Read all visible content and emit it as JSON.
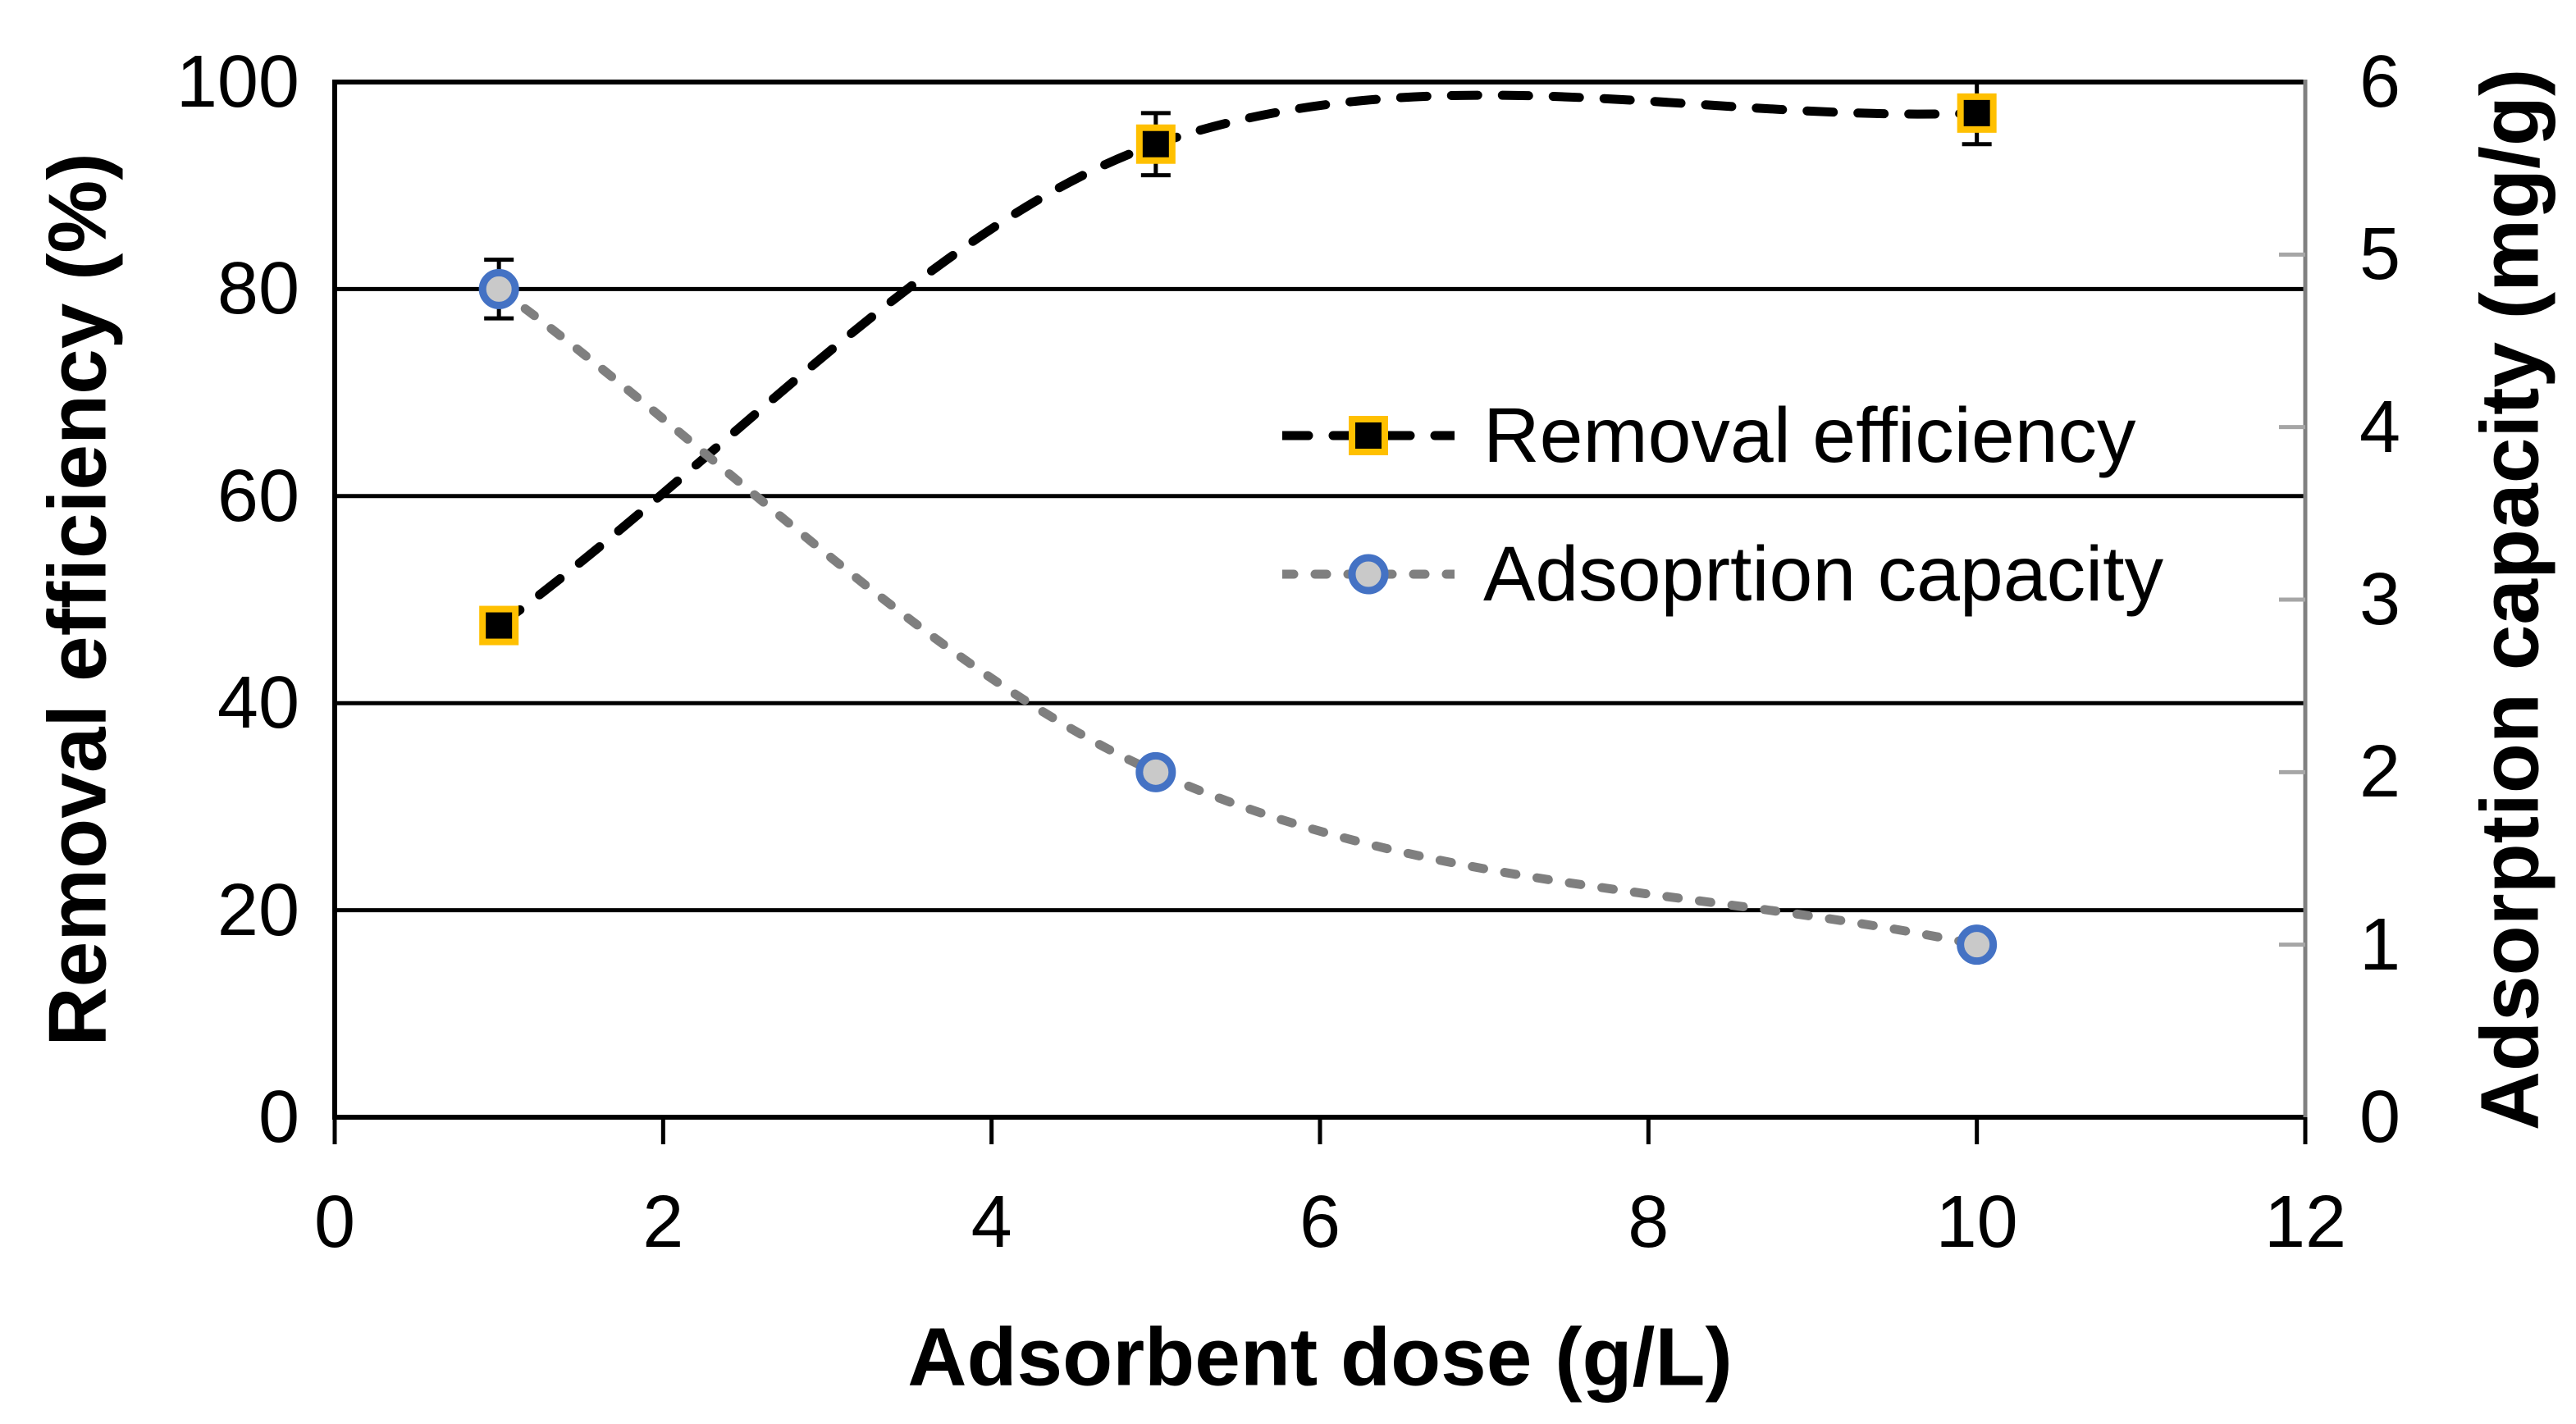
{
  "figure": {
    "background": "#FFFFFF"
  },
  "chart_data": {
    "type": "line",
    "title": "",
    "x_axis": {
      "title": "Adsorbent dose (g/L)",
      "min": 0,
      "max": 12,
      "ticks": [
        0,
        2,
        4,
        6,
        8,
        10,
        12
      ]
    },
    "y_axis_left": {
      "title": "Removal efficiency (%)",
      "min": 0,
      "max": 100,
      "ticks": [
        0,
        20,
        40,
        60,
        80,
        100
      ],
      "gridlines": [
        20,
        40,
        60,
        80
      ]
    },
    "y_axis_right": {
      "title": "Adsorption capacity (mg/g)",
      "min": 0,
      "max": 6,
      "ticks": [
        0,
        1,
        2,
        3,
        4,
        5,
        6
      ],
      "tick_marks": [
        1,
        2,
        3,
        4,
        5
      ]
    },
    "grid": "horizontal-only",
    "legend": {
      "position": "inside-right",
      "items": [
        "Removal efficiency",
        "Adsoprtion capacity"
      ]
    },
    "series": [
      {
        "name": "Removal efficiency",
        "axis": "left",
        "line_style": "dashed",
        "smooth": true,
        "marker": "square",
        "line_color": "#000000",
        "marker_fill": "#000000",
        "marker_border": "#FFC000",
        "x": [
          1,
          5,
          10
        ],
        "y": [
          47.5,
          94,
          97
        ],
        "error": [
          null,
          3,
          3
        ]
      },
      {
        "name": "Adsoprtion capacity",
        "axis": "right",
        "line_style": "dashed",
        "smooth": true,
        "marker": "circle",
        "line_color": "#7F7F7F",
        "marker_fill": "#C9C9C9",
        "marker_border": "#4472C4",
        "x": [
          1,
          5,
          10
        ],
        "y": [
          4.8,
          2.0,
          1.0
        ],
        "error": [
          0.17,
          null,
          null
        ]
      }
    ],
    "colors": {
      "gridline": "#000000",
      "primary_axis": "#000000",
      "secondary_axis_line": "#808080",
      "secondary_axis_tick": "#A6A6A6",
      "error_bar": "#000000"
    }
  }
}
